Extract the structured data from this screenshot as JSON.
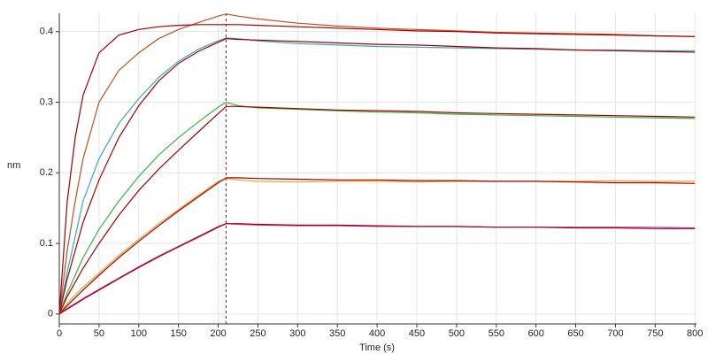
{
  "chart_data": {
    "type": "line",
    "xlabel": "Time (s)",
    "ylabel": "nm",
    "xlim": [
      0,
      802
    ],
    "ylim": [
      -0.014,
      0.426
    ],
    "xticks": [
      0,
      50,
      100,
      150,
      200,
      250,
      300,
      350,
      400,
      450,
      500,
      550,
      600,
      650,
      700,
      750,
      800
    ],
    "yticks": [
      0,
      0.1,
      0.2,
      0.3,
      0.4
    ],
    "grid": true,
    "vline": {
      "x": 210,
      "color": "#d00000"
    },
    "x": [
      0,
      10,
      20,
      30,
      50,
      75,
      100,
      125,
      150,
      175,
      200,
      210,
      225,
      250,
      300,
      350,
      400,
      450,
      500,
      550,
      600,
      650,
      700,
      750,
      800
    ],
    "series": [
      {
        "color": "#c0501a",
        "values": [
          0,
          0.09,
          0.16,
          0.22,
          0.3,
          0.345,
          0.37,
          0.39,
          0.403,
          0.413,
          0.422,
          0.425,
          0.422,
          0.418,
          0.412,
          0.408,
          0.405,
          0.403,
          0.401,
          0.399,
          0.398,
          0.397,
          0.396,
          0.394,
          0.393
        ]
      },
      {
        "color": "#a00000",
        "values": [
          0,
          0.16,
          0.25,
          0.31,
          0.37,
          0.395,
          0.403,
          0.407,
          0.409,
          0.41,
          0.41,
          0.41,
          0.41,
          0.409,
          0.407,
          0.405,
          0.403,
          0.401,
          0.4,
          0.398,
          0.397,
          0.396,
          0.395,
          0.394,
          0.393
        ]
      },
      {
        "color": "#3aa6c0",
        "values": [
          0,
          0.06,
          0.11,
          0.16,
          0.22,
          0.27,
          0.305,
          0.335,
          0.358,
          0.375,
          0.387,
          0.391,
          0.39,
          0.387,
          0.383,
          0.381,
          0.379,
          0.378,
          0.377,
          0.376,
          0.375,
          0.374,
          0.374,
          0.373,
          0.373
        ]
      },
      {
        "color": "#a00000",
        "values": [
          0,
          0.05,
          0.09,
          0.13,
          0.19,
          0.25,
          0.295,
          0.33,
          0.355,
          0.372,
          0.385,
          0.39,
          0.389,
          0.388,
          0.386,
          0.384,
          0.382,
          0.381,
          0.379,
          0.377,
          0.376,
          0.374,
          0.373,
          0.372,
          0.371
        ]
      },
      {
        "color": "#3cb043",
        "values": [
          0,
          0.03,
          0.055,
          0.08,
          0.12,
          0.16,
          0.195,
          0.225,
          0.25,
          0.272,
          0.293,
          0.3,
          0.295,
          0.292,
          0.29,
          0.288,
          0.286,
          0.285,
          0.283,
          0.282,
          0.281,
          0.28,
          0.279,
          0.278,
          0.277
        ]
      },
      {
        "color": "#a00000",
        "values": [
          0,
          0.025,
          0.045,
          0.065,
          0.1,
          0.14,
          0.175,
          0.205,
          0.232,
          0.258,
          0.284,
          0.294,
          0.294,
          0.293,
          0.291,
          0.289,
          0.288,
          0.287,
          0.285,
          0.284,
          0.283,
          0.282,
          0.281,
          0.28,
          0.279
        ]
      },
      {
        "color": "#f0a030",
        "values": [
          0,
          0.015,
          0.027,
          0.038,
          0.058,
          0.083,
          0.106,
          0.128,
          0.148,
          0.168,
          0.188,
          0.192,
          0.19,
          0.188,
          0.187,
          0.188,
          0.188,
          0.187,
          0.188,
          0.188,
          0.188,
          0.188,
          0.189,
          0.188,
          0.188
        ]
      },
      {
        "color": "#a00000",
        "values": [
          0,
          0.012,
          0.023,
          0.034,
          0.055,
          0.08,
          0.103,
          0.125,
          0.146,
          0.166,
          0.186,
          0.193,
          0.193,
          0.192,
          0.191,
          0.19,
          0.19,
          0.189,
          0.189,
          0.188,
          0.188,
          0.187,
          0.186,
          0.186,
          0.185
        ]
      },
      {
        "color": "#d040c0",
        "values": [
          0,
          0.008,
          0.015,
          0.022,
          0.035,
          0.051,
          0.067,
          0.082,
          0.096,
          0.11,
          0.124,
          0.128,
          0.127,
          0.126,
          0.125,
          0.125,
          0.124,
          0.124,
          0.124,
          0.123,
          0.123,
          0.123,
          0.123,
          0.123,
          0.122
        ]
      },
      {
        "color": "#a00000",
        "values": [
          0,
          0.007,
          0.014,
          0.021,
          0.034,
          0.05,
          0.066,
          0.081,
          0.095,
          0.109,
          0.123,
          0.128,
          0.128,
          0.127,
          0.126,
          0.126,
          0.125,
          0.124,
          0.124,
          0.123,
          0.123,
          0.122,
          0.122,
          0.121,
          0.121
        ]
      }
    ]
  }
}
